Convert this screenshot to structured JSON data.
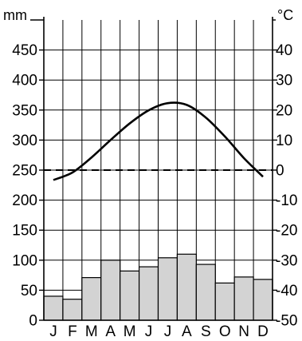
{
  "chart_data": {
    "type": "climate-diagram",
    "title": "",
    "months": [
      "J",
      "F",
      "M",
      "A",
      "M",
      "J",
      "J",
      "A",
      "S",
      "O",
      "N",
      "D"
    ],
    "precipitation": {
      "unit": "mm",
      "type": "bar",
      "values": [
        40,
        35,
        71,
        100,
        82,
        89,
        104,
        110,
        93,
        62,
        72,
        68
      ],
      "ylim": [
        0,
        500
      ],
      "ticks": [
        0,
        50,
        100,
        150,
        200,
        250,
        300,
        350,
        400,
        450
      ],
      "color": "#d3d3d3"
    },
    "temperature": {
      "unit": "°C",
      "type": "line",
      "values": [
        -3.3,
        -0.8,
        4.2,
        10,
        15.5,
        19.9,
        22.3,
        21.7,
        17.5,
        11.2,
        4.0,
        -2.2
      ],
      "ylim": [
        -50,
        50
      ],
      "ticks": [
        -50,
        -40,
        -30,
        -20,
        -10,
        0,
        10,
        20,
        30,
        40
      ],
      "color": "#000000"
    },
    "zero_line": "dashed",
    "grid": true
  }
}
